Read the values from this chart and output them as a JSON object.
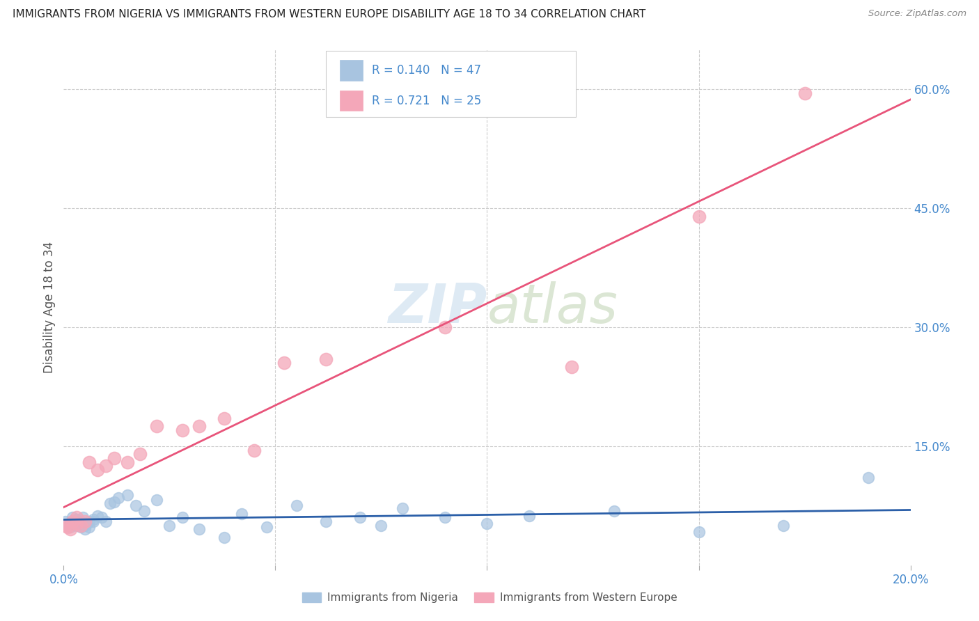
{
  "title": "IMMIGRANTS FROM NIGERIA VS IMMIGRANTS FROM WESTERN EUROPE DISABILITY AGE 18 TO 34 CORRELATION CHART",
  "source": "Source: ZipAtlas.com",
  "ylabel": "Disability Age 18 to 34",
  "xlim": [
    0.0,
    0.2
  ],
  "ylim": [
    0.0,
    0.65
  ],
  "x_tick_positions": [
    0.0,
    0.05,
    0.1,
    0.15,
    0.2
  ],
  "x_tick_labels": [
    "0.0%",
    "",
    "",
    "",
    "20.0%"
  ],
  "y_tick_positions": [
    0.0,
    0.15,
    0.3,
    0.45,
    0.6
  ],
  "y_tick_labels": [
    "",
    "15.0%",
    "30.0%",
    "45.0%",
    "60.0%"
  ],
  "nigeria_R": 0.14,
  "nigeria_N": 47,
  "western_europe_R": 0.721,
  "western_europe_N": 25,
  "nigeria_color": "#a8c4e0",
  "nigeria_line_color": "#2b5fa8",
  "western_europe_color": "#f4a7b9",
  "western_europe_line_color": "#e8547a",
  "legend_text_color": "#4488cc",
  "axis_label_color": "#555555",
  "tick_color": "#4488cc",
  "watermark_color": "#c8dcee",
  "nigeria_x": [
    0.0005,
    0.001,
    0.0015,
    0.002,
    0.002,
    0.0025,
    0.003,
    0.003,
    0.0035,
    0.004,
    0.004,
    0.0045,
    0.005,
    0.005,
    0.0055,
    0.006,
    0.006,
    0.007,
    0.007,
    0.008,
    0.009,
    0.01,
    0.011,
    0.012,
    0.013,
    0.015,
    0.017,
    0.019,
    0.022,
    0.025,
    0.028,
    0.032,
    0.038,
    0.042,
    0.048,
    0.055,
    0.062,
    0.07,
    0.075,
    0.08,
    0.09,
    0.1,
    0.11,
    0.13,
    0.15,
    0.17,
    0.19
  ],
  "nigeria_y": [
    0.055,
    0.05,
    0.048,
    0.06,
    0.052,
    0.055,
    0.05,
    0.058,
    0.053,
    0.048,
    0.055,
    0.06,
    0.05,
    0.045,
    0.052,
    0.055,
    0.048,
    0.058,
    0.055,
    0.062,
    0.06,
    0.055,
    0.078,
    0.08,
    0.085,
    0.088,
    0.075,
    0.068,
    0.082,
    0.05,
    0.06,
    0.045,
    0.035,
    0.065,
    0.048,
    0.075,
    0.055,
    0.06,
    0.05,
    0.072,
    0.06,
    0.052,
    0.062,
    0.068,
    0.042,
    0.05,
    0.11
  ],
  "western_europe_x": [
    0.0005,
    0.001,
    0.0015,
    0.002,
    0.003,
    0.003,
    0.004,
    0.005,
    0.006,
    0.008,
    0.01,
    0.012,
    0.015,
    0.018,
    0.022,
    0.028,
    0.032,
    0.038,
    0.045,
    0.052,
    0.062,
    0.09,
    0.12,
    0.15,
    0.175
  ],
  "western_europe_y": [
    0.05,
    0.048,
    0.045,
    0.055,
    0.06,
    0.052,
    0.05,
    0.055,
    0.13,
    0.12,
    0.125,
    0.135,
    0.13,
    0.14,
    0.175,
    0.17,
    0.175,
    0.185,
    0.145,
    0.255,
    0.26,
    0.3,
    0.25,
    0.44,
    0.595
  ]
}
